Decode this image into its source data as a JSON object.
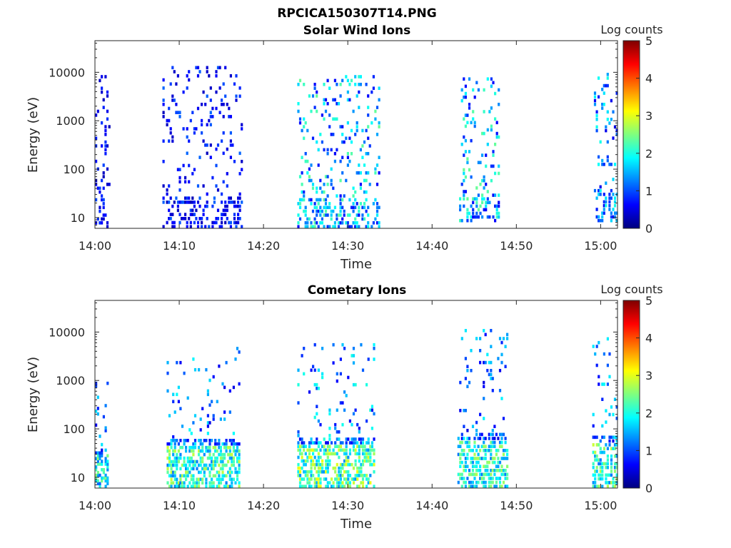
{
  "figure_title": "RPCICA150307T14.PNG",
  "colors": {
    "colormap": [
      "#00007f",
      "#0000ff",
      "#007fff",
      "#00ffff",
      "#7fff7f",
      "#ffff00",
      "#ff7f00",
      "#ff0000",
      "#7f0000"
    ]
  },
  "chart_data": [
    {
      "type": "heatmap",
      "title": "Solar Wind Ions",
      "xlabel": "Time",
      "ylabel": "Energy (eV)",
      "xlim": [
        "14:00",
        "15:02"
      ],
      "ylim": [
        6,
        45000
      ],
      "yscale": "log",
      "xticks": [
        "14:00",
        "14:10",
        "14:20",
        "14:30",
        "14:40",
        "14:50",
        "15:00"
      ],
      "yticks": [
        "10",
        "100",
        "1000",
        "10000"
      ],
      "colorbar_label": "Log counts",
      "colorbar_ticks": [
        "0",
        "1",
        "2",
        "3",
        "4",
        "5"
      ],
      "clim": [
        0,
        5
      ],
      "grid": false,
      "bursts": [
        {
          "t_start": 0.0,
          "t_end": 1.8,
          "e_low": 6,
          "e_high": 9000,
          "peak": 1.2
        },
        {
          "t_start": 8.0,
          "t_end": 17.5,
          "e_low": 6,
          "e_high": 14000,
          "peak": 1.4
        },
        {
          "t_start": 24.0,
          "t_end": 33.8,
          "e_low": 6,
          "e_high": 9000,
          "peak": 3.0
        },
        {
          "t_start": 43.2,
          "t_end": 48.0,
          "e_low": 8,
          "e_high": 8000,
          "peak": 3.0
        },
        {
          "t_start": 59.2,
          "t_end": 62.0,
          "e_low": 8,
          "e_high": 10000,
          "peak": 2.5
        }
      ]
    },
    {
      "type": "heatmap",
      "title": "Cometary Ions",
      "xlabel": "Time",
      "ylabel": "Energy (eV)",
      "xlim": [
        "14:00",
        "15:02"
      ],
      "ylim": [
        6,
        45000
      ],
      "yscale": "log",
      "xticks": [
        "14:00",
        "14:10",
        "14:20",
        "14:30",
        "14:40",
        "14:50",
        "15:00"
      ],
      "yticks": [
        "10",
        "100",
        "1000",
        "10000"
      ],
      "colorbar_label": "Log counts",
      "colorbar_ticks": [
        "0",
        "1",
        "2",
        "3",
        "4",
        "5"
      ],
      "clim": [
        0,
        5
      ],
      "grid": false,
      "bursts": [
        {
          "t_start": 0.0,
          "t_end": 1.6,
          "e_low": 6,
          "e_high": 1200,
          "peak": 2.2
        },
        {
          "t_start": 8.5,
          "t_end": 17.2,
          "e_low": 6,
          "e_high": 5000,
          "peak": 2.4
        },
        {
          "t_start": 24.0,
          "t_end": 33.2,
          "e_low": 6,
          "e_high": 6000,
          "peak": 2.6
        },
        {
          "t_start": 43.0,
          "t_end": 49.0,
          "e_low": 6,
          "e_high": 12000,
          "peak": 2.3
        },
        {
          "t_start": 59.0,
          "t_end": 62.0,
          "e_low": 6,
          "e_high": 8000,
          "peak": 2.4
        }
      ]
    }
  ]
}
